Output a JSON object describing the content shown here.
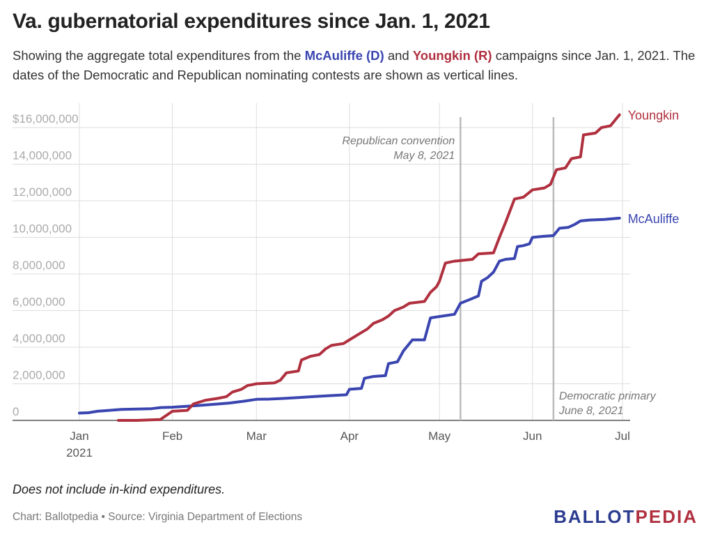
{
  "header": {
    "title": "Va. gubernatorial expenditures since Jan. 1, 2021",
    "subtitle_pre": "Showing the aggregate total expenditures from the ",
    "subtitle_dem": "McAuliffe (D)",
    "subtitle_mid": " and ",
    "subtitle_rep": "Youngkin (R)",
    "subtitle_post": " campaigns since Jan. 1, 2021. The dates of the Democratic and Republican nominating contests are shown as vertical lines."
  },
  "footer": {
    "note": "Does not include in-kind expenditures.",
    "source": "Chart: Ballotpedia • Source: Virginia Department of Elections",
    "logo_part1": "BALLOT",
    "logo_part2": "PEDIA"
  },
  "colors": {
    "mcauliffe": "#3a45b0",
    "youngkin": "#b0303f",
    "grid": "#dddddd",
    "annotation_line": "#bbbbbb",
    "axis_text": "#aaaaaa",
    "month_text": "#555555"
  },
  "chart_data": {
    "type": "line",
    "y_tick_labels": [
      "0",
      "2,000,000",
      "4,000,000",
      "6,000,000",
      "8,000,000",
      "10,000,000",
      "12,000,000",
      "14,000,000",
      "$16,000,000"
    ],
    "y_ticks": [
      0,
      2000000,
      4000000,
      6000000,
      8000000,
      10000000,
      12000000,
      14000000,
      16000000
    ],
    "ylim": [
      0,
      16000000
    ],
    "x_ticks": [
      {
        "date": "2021-01-01",
        "label": "Jan",
        "sublabel": "2021"
      },
      {
        "date": "2021-02-01",
        "label": "Feb",
        "sublabel": ""
      },
      {
        "date": "2021-03-01",
        "label": "Mar",
        "sublabel": ""
      },
      {
        "date": "2021-04-01",
        "label": "Apr",
        "sublabel": ""
      },
      {
        "date": "2021-05-01",
        "label": "May",
        "sublabel": ""
      },
      {
        "date": "2021-06-01",
        "label": "Jun",
        "sublabel": ""
      },
      {
        "date": "2021-07-01",
        "label": "Jul",
        "sublabel": ""
      }
    ],
    "xlim": [
      "2021-01-01",
      "2021-07-01"
    ],
    "grid": true,
    "annotations": [
      {
        "date": "2021-05-08",
        "line1": "Republican convention",
        "line2": "May 8, 2021",
        "position": "top"
      },
      {
        "date": "2021-06-08",
        "line1": "Democratic primary",
        "line2": "June 8, 2021",
        "position": "bottom"
      }
    ],
    "series": [
      {
        "name": "McAuliffe",
        "color": "#3a45b0",
        "points": [
          [
            "2021-01-01",
            400000
          ],
          [
            "2021-01-04",
            420000
          ],
          [
            "2021-01-07",
            500000
          ],
          [
            "2021-01-11",
            550000
          ],
          [
            "2021-01-15",
            600000
          ],
          [
            "2021-01-20",
            620000
          ],
          [
            "2021-01-25",
            640000
          ],
          [
            "2021-01-28",
            700000
          ],
          [
            "2021-02-01",
            720000
          ],
          [
            "2021-02-05",
            760000
          ],
          [
            "2021-02-10",
            820000
          ],
          [
            "2021-02-15",
            880000
          ],
          [
            "2021-02-20",
            950000
          ],
          [
            "2021-02-25",
            1050000
          ],
          [
            "2021-03-01",
            1150000
          ],
          [
            "2021-03-05",
            1160000
          ],
          [
            "2021-03-10",
            1200000
          ],
          [
            "2021-03-15",
            1250000
          ],
          [
            "2021-03-20",
            1300000
          ],
          [
            "2021-03-25",
            1350000
          ],
          [
            "2021-03-31",
            1400000
          ],
          [
            "2021-04-01",
            1700000
          ],
          [
            "2021-04-05",
            1750000
          ],
          [
            "2021-04-06",
            2300000
          ],
          [
            "2021-04-09",
            2400000
          ],
          [
            "2021-04-13",
            2450000
          ],
          [
            "2021-04-14",
            3100000
          ],
          [
            "2021-04-17",
            3200000
          ],
          [
            "2021-04-19",
            3800000
          ],
          [
            "2021-04-22",
            4400000
          ],
          [
            "2021-04-26",
            4400000
          ],
          [
            "2021-04-28",
            5600000
          ],
          [
            "2021-05-02",
            5700000
          ],
          [
            "2021-05-06",
            5800000
          ],
          [
            "2021-05-08",
            6400000
          ],
          [
            "2021-05-11",
            6600000
          ],
          [
            "2021-05-14",
            6800000
          ],
          [
            "2021-05-15",
            7600000
          ],
          [
            "2021-05-17",
            7800000
          ],
          [
            "2021-05-19",
            8100000
          ],
          [
            "2021-05-21",
            8700000
          ],
          [
            "2021-05-23",
            8800000
          ],
          [
            "2021-05-26",
            8850000
          ],
          [
            "2021-05-27",
            9500000
          ],
          [
            "2021-05-29",
            9550000
          ],
          [
            "2021-05-31",
            9650000
          ],
          [
            "2021-06-01",
            10000000
          ],
          [
            "2021-06-04",
            10050000
          ],
          [
            "2021-06-08",
            10100000
          ],
          [
            "2021-06-10",
            10500000
          ],
          [
            "2021-06-13",
            10550000
          ],
          [
            "2021-06-15",
            10700000
          ],
          [
            "2021-06-17",
            10900000
          ],
          [
            "2021-06-20",
            10950000
          ],
          [
            "2021-06-25",
            10980000
          ],
          [
            "2021-06-30",
            11050000
          ]
        ]
      },
      {
        "name": "Youngkin",
        "color": "#b0303f",
        "points": [
          [
            "2021-01-14",
            0
          ],
          [
            "2021-01-20",
            0
          ],
          [
            "2021-01-28",
            50000
          ],
          [
            "2021-02-01",
            500000
          ],
          [
            "2021-02-06",
            550000
          ],
          [
            "2021-02-08",
            900000
          ],
          [
            "2021-02-12",
            1100000
          ],
          [
            "2021-02-16",
            1200000
          ],
          [
            "2021-02-19",
            1300000
          ],
          [
            "2021-02-21",
            1550000
          ],
          [
            "2021-02-24",
            1700000
          ],
          [
            "2021-02-26",
            1900000
          ],
          [
            "2021-03-01",
            2000000
          ],
          [
            "2021-03-07",
            2050000
          ],
          [
            "2021-03-09",
            2200000
          ],
          [
            "2021-03-11",
            2600000
          ],
          [
            "2021-03-15",
            2700000
          ],
          [
            "2021-03-16",
            3300000
          ],
          [
            "2021-03-19",
            3500000
          ],
          [
            "2021-03-22",
            3600000
          ],
          [
            "2021-03-24",
            3900000
          ],
          [
            "2021-03-26",
            4100000
          ],
          [
            "2021-03-30",
            4200000
          ],
          [
            "2021-04-01",
            4400000
          ],
          [
            "2021-04-04",
            4700000
          ],
          [
            "2021-04-07",
            5000000
          ],
          [
            "2021-04-09",
            5300000
          ],
          [
            "2021-04-12",
            5500000
          ],
          [
            "2021-04-14",
            5700000
          ],
          [
            "2021-04-16",
            6000000
          ],
          [
            "2021-04-19",
            6200000
          ],
          [
            "2021-04-21",
            6400000
          ],
          [
            "2021-04-26",
            6500000
          ],
          [
            "2021-04-28",
            7000000
          ],
          [
            "2021-04-30",
            7300000
          ],
          [
            "2021-05-01",
            7600000
          ],
          [
            "2021-05-03",
            8600000
          ],
          [
            "2021-05-06",
            8700000
          ],
          [
            "2021-05-12",
            8800000
          ],
          [
            "2021-05-14",
            9100000
          ],
          [
            "2021-05-19",
            9150000
          ],
          [
            "2021-05-21",
            10000000
          ],
          [
            "2021-05-23",
            10800000
          ],
          [
            "2021-05-26",
            12100000
          ],
          [
            "2021-05-29",
            12200000
          ],
          [
            "2021-06-01",
            12600000
          ],
          [
            "2021-06-05",
            12700000
          ],
          [
            "2021-06-07",
            12900000
          ],
          [
            "2021-06-09",
            13700000
          ],
          [
            "2021-06-12",
            13800000
          ],
          [
            "2021-06-14",
            14300000
          ],
          [
            "2021-06-17",
            14400000
          ],
          [
            "2021-06-18",
            15600000
          ],
          [
            "2021-06-22",
            15700000
          ],
          [
            "2021-06-24",
            16000000
          ],
          [
            "2021-06-27",
            16100000
          ],
          [
            "2021-06-30",
            16700000
          ]
        ]
      }
    ]
  }
}
